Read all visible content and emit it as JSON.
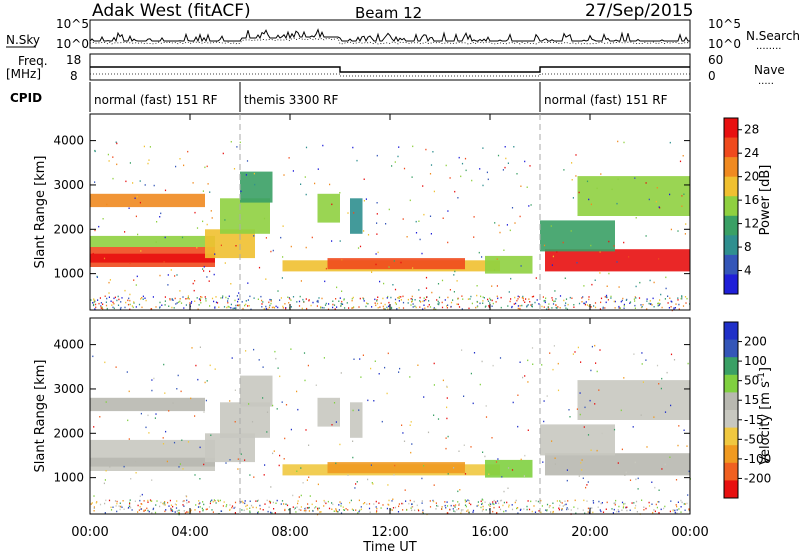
{
  "header": {
    "station": "Adak West (fitACF)",
    "beam": "Beam 12",
    "date": "27/Sep/2015"
  },
  "left_labels": {
    "nsky": "N.Sky",
    "freq_line1": "Freq.",
    "freq_line2": "[MHz]",
    "cpid": "CPID"
  },
  "right_labels": {
    "nsearch": "N.Search",
    "nave": "Nave",
    "dots": "........",
    "dots_short": "....."
  },
  "noise_axis": {
    "left_top": "10^5",
    "left_bottom": "10^0",
    "right_top": "10^5",
    "right_bottom": "10^0"
  },
  "freq_axis": {
    "left_ticks": [
      "18",
      "8"
    ],
    "right_ticks": [
      "60",
      "0"
    ]
  },
  "cpid_segments": [
    {
      "label": "normal (fast) 151 RF",
      "start_hour": 0,
      "end_hour": 6
    },
    {
      "label": "themis 3300 RF",
      "start_hour": 6,
      "end_hour": 18
    },
    {
      "label": "normal (fast) 151 RF",
      "start_hour": 18,
      "end_hour": 24
    }
  ],
  "colors": {
    "power_scale": [
      "#1f1fd8",
      "#3456b8",
      "#2f8f8f",
      "#3aa065",
      "#8fd040",
      "#f0c030",
      "#f08a20",
      "#ef4a1d",
      "#e81010"
    ],
    "velocity_scale": [
      "#e81010",
      "#f06020",
      "#f09a20",
      "#f0c840",
      "#c8c8c0",
      "#b8b8b0",
      "#80d040",
      "#3aa065",
      "#3456b8",
      "#2030c8"
    ],
    "axis": "#000000",
    "dashed": "#aaaaaa"
  },
  "chart_data": [
    {
      "type": "heatmap",
      "ylabel": "Slant Range [km]",
      "xlabel": "Time UT",
      "x_ticks": [
        "00:00",
        "04:00",
        "08:00",
        "12:00",
        "16:00",
        "20:00",
        "00:00"
      ],
      "y_ticks": [
        "1000",
        "2000",
        "3000",
        "4000"
      ],
      "xlim_hours": [
        0,
        24
      ],
      "ylim_km": [
        180,
        4600
      ],
      "colorbar": {
        "label": "Power [dB]",
        "ticks": [
          "4",
          "8",
          "12",
          "16",
          "20",
          "24",
          "28"
        ],
        "range": [
          0,
          30
        ]
      }
    },
    {
      "type": "heatmap",
      "ylabel": "Slant Range [km]",
      "xlabel": "Time UT",
      "x_ticks": [
        "00:00",
        "04:00",
        "08:00",
        "12:00",
        "16:00",
        "20:00",
        "00:00"
      ],
      "y_ticks": [
        "1000",
        "2000",
        "3000",
        "4000"
      ],
      "xlim_hours": [
        0,
        24
      ],
      "ylim_km": [
        180,
        4600
      ],
      "colorbar": {
        "label": "Velocity [m s^-1]",
        "ticks": [
          "200",
          "100",
          "50",
          "15",
          "-15",
          "-50",
          "-100",
          "-200"
        ]
      }
    }
  ]
}
